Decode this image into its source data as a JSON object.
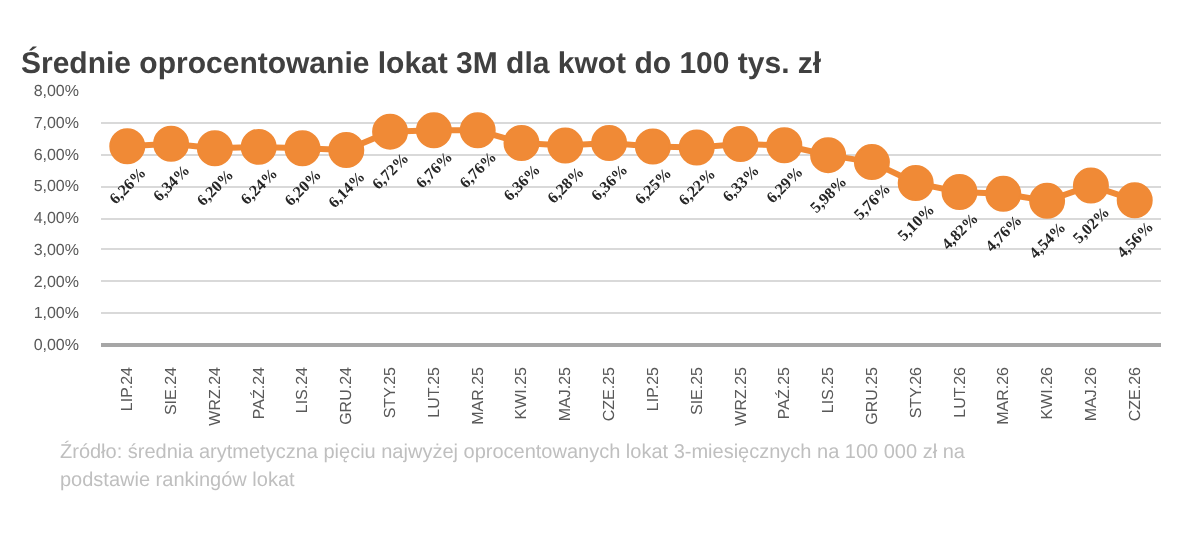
{
  "chart_data": {
    "type": "line",
    "title": "Średnie oprocentowanie lokat 3M dla kwot do 100 tys. zł",
    "categories": [
      "LIP.24",
      "SIE.24",
      "WRZ.24",
      "PAŹ.24",
      "LIS.24",
      "GRU.24",
      "STY.25",
      "LUT.25",
      "MAR.25",
      "KWI.25",
      "MAJ.25",
      "CZE.25",
      "LIP.25",
      "SIE.25",
      "WRZ.25",
      "PAŹ.25",
      "LIS.25",
      "GRU.25",
      "STY.26",
      "LUT.26",
      "MAR.26",
      "KWI.26",
      "MAJ.26",
      "CZE.26"
    ],
    "series": [
      {
        "color": "#f08a36",
        "values": [
          6.26,
          6.34,
          6.2,
          6.24,
          6.2,
          6.14,
          6.72,
          6.76,
          6.76,
          6.36,
          6.28,
          6.36,
          6.25,
          6.22,
          6.33,
          6.29,
          5.98,
          5.76,
          5.1,
          4.82,
          4.76,
          4.54,
          5.02,
          4.56
        ],
        "value_labels": [
          "6,26%",
          "6,34%",
          "6,20%",
          "6,24%",
          "6,20%",
          "6,14%",
          "6,72%",
          "6,76%",
          "6,76%",
          "6,36%",
          "6,28%",
          "6,36%",
          "6,25%",
          "6,22%",
          "6,33%",
          "6,29%",
          "5,98%",
          "5,76%",
          "5,10%",
          "4,82%",
          "4,76%",
          "4,54%",
          "5,02%",
          "4,56%"
        ]
      }
    ],
    "ylim": [
      0,
      8
    ],
    "yticks": [
      {
        "value": 0,
        "label": "0,00%"
      },
      {
        "value": 1,
        "label": "1,00%"
      },
      {
        "value": 2,
        "label": "2,00%"
      },
      {
        "value": 3,
        "label": "3,00%"
      },
      {
        "value": 4,
        "label": "4,00%"
      },
      {
        "value": 5,
        "label": "5,00%"
      },
      {
        "value": 6,
        "label": "6,00%"
      },
      {
        "value": 7,
        "label": "7,00%"
      },
      {
        "value": 8,
        "label": "8,00%"
      }
    ],
    "grid": "y",
    "marker": "circle",
    "line_style": "solid",
    "annotations": [
      "Źródło: średnia arytmetyczna pięciu najwyżej oprocentowanych lokat 3-miesięcznych na 100 000 zł na podstawie rankingów lokat"
    ]
  }
}
